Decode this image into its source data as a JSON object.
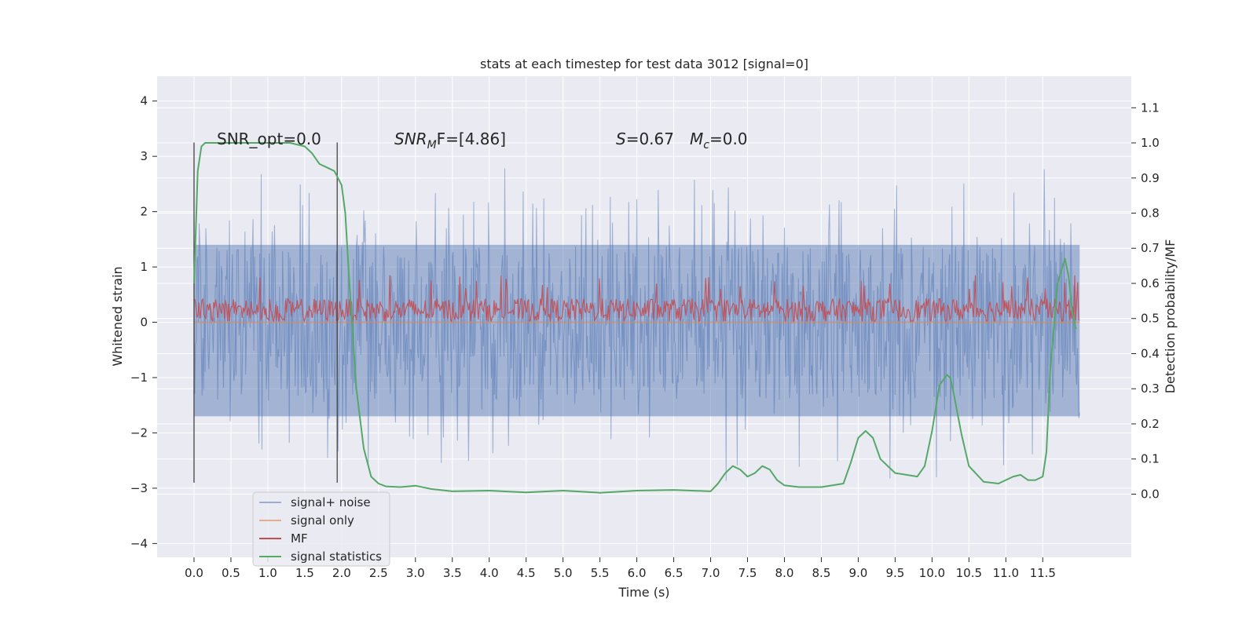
{
  "chart_data": {
    "type": "line",
    "title": "stats at each timestep for test data 3012 [signal=0]",
    "xlabel": "Time (s)",
    "ylabel_left": "Whitened strain",
    "ylabel_right": "Detection probability/MF",
    "xlim": [
      -0.5,
      12.7
    ],
    "ylim_left": [
      -4.25,
      4.45
    ],
    "ylim_right": [
      -0.18,
      1.19
    ],
    "grid": true,
    "legend_position": "lower-left",
    "x_ticks": [
      "0.0",
      "0.5",
      "1.0",
      "1.5",
      "2.0",
      "2.5",
      "3.0",
      "3.5",
      "4.0",
      "4.5",
      "5.0",
      "5.5",
      "6.0",
      "6.5",
      "7.0",
      "7.5",
      "8.0",
      "8.5",
      "9.0",
      "9.5",
      "10.0",
      "10.5",
      "11.0",
      "11.5"
    ],
    "y_ticks_left": [
      "4",
      "3",
      "2",
      "1",
      "0",
      "−1",
      "−2",
      "−3",
      "−4"
    ],
    "y_ticks_right": [
      "1.1",
      "1.0",
      "0.9",
      "0.8",
      "0.7",
      "0.6",
      "0.5",
      "0.4",
      "0.3",
      "0.2",
      "0.1",
      "0.0"
    ],
    "annotations": {
      "snr_opt": "SNR_opt=0.0",
      "snr_mf_main": "SNR",
      "snr_mf_sub": "M",
      "snr_mf_rest": "F=[4.86]",
      "s_main": "S",
      "s_rest": "=0.67",
      "mc_main": "M",
      "mc_sub": "c",
      "mc_rest": "=0.0"
    },
    "vertical_lines": [
      0.0,
      1.94
    ],
    "series": [
      {
        "name": "signal+ noise",
        "color": "#4c72b0",
        "axis": "left",
        "t_start": 0.0,
        "t_end": 12.0,
        "envelope": [
          -2.6,
          2.8
        ],
        "band": [
          -1.7,
          1.4
        ]
      },
      {
        "name": "signal only",
        "color": "#dd8452",
        "axis": "left",
        "t_start": 0.0,
        "t_end": 12.0,
        "values": [
          0.0,
          0.0
        ]
      },
      {
        "name": "MF",
        "color": "#c44e52",
        "axis": "left",
        "t_start": 0.0,
        "t_end": 12.0,
        "band": [
          0.0,
          0.6
        ]
      },
      {
        "name": "signal statistics",
        "color": "#55a868",
        "axis": "right",
        "x": [
          0.0,
          0.05,
          0.1,
          0.15,
          0.25,
          0.5,
          1.0,
          1.3,
          1.5,
          1.6,
          1.7,
          1.8,
          1.9,
          2.0,
          2.05,
          2.1,
          2.15,
          2.2,
          2.3,
          2.4,
          2.5,
          2.6,
          2.8,
          3.0,
          3.2,
          3.5,
          4.0,
          4.5,
          5.0,
          5.5,
          6.0,
          6.5,
          7.0,
          7.1,
          7.2,
          7.3,
          7.4,
          7.5,
          7.6,
          7.7,
          7.8,
          7.9,
          8.0,
          8.2,
          8.5,
          8.8,
          8.9,
          9.0,
          9.1,
          9.2,
          9.3,
          9.5,
          9.8,
          9.9,
          10.0,
          10.1,
          10.2,
          10.25,
          10.3,
          10.4,
          10.5,
          10.7,
          10.9,
          11.1,
          11.2,
          11.3,
          11.4,
          11.5,
          11.55,
          11.6,
          11.7,
          11.8,
          11.85,
          11.9,
          11.95
        ],
        "values": [
          0.6,
          0.92,
          0.99,
          1.0,
          1.0,
          1.0,
          1.0,
          1.0,
          0.99,
          0.97,
          0.94,
          0.93,
          0.92,
          0.88,
          0.8,
          0.62,
          0.46,
          0.3,
          0.13,
          0.05,
          0.03,
          0.022,
          0.02,
          0.024,
          0.015,
          0.008,
          0.01,
          0.005,
          0.01,
          0.004,
          0.01,
          0.012,
          0.008,
          0.03,
          0.06,
          0.08,
          0.07,
          0.05,
          0.06,
          0.08,
          0.07,
          0.04,
          0.025,
          0.02,
          0.02,
          0.03,
          0.09,
          0.16,
          0.18,
          0.16,
          0.1,
          0.06,
          0.05,
          0.08,
          0.18,
          0.31,
          0.34,
          0.33,
          0.28,
          0.17,
          0.08,
          0.035,
          0.03,
          0.05,
          0.055,
          0.04,
          0.04,
          0.05,
          0.12,
          0.35,
          0.6,
          0.67,
          0.62,
          0.52,
          0.47
        ]
      }
    ]
  }
}
